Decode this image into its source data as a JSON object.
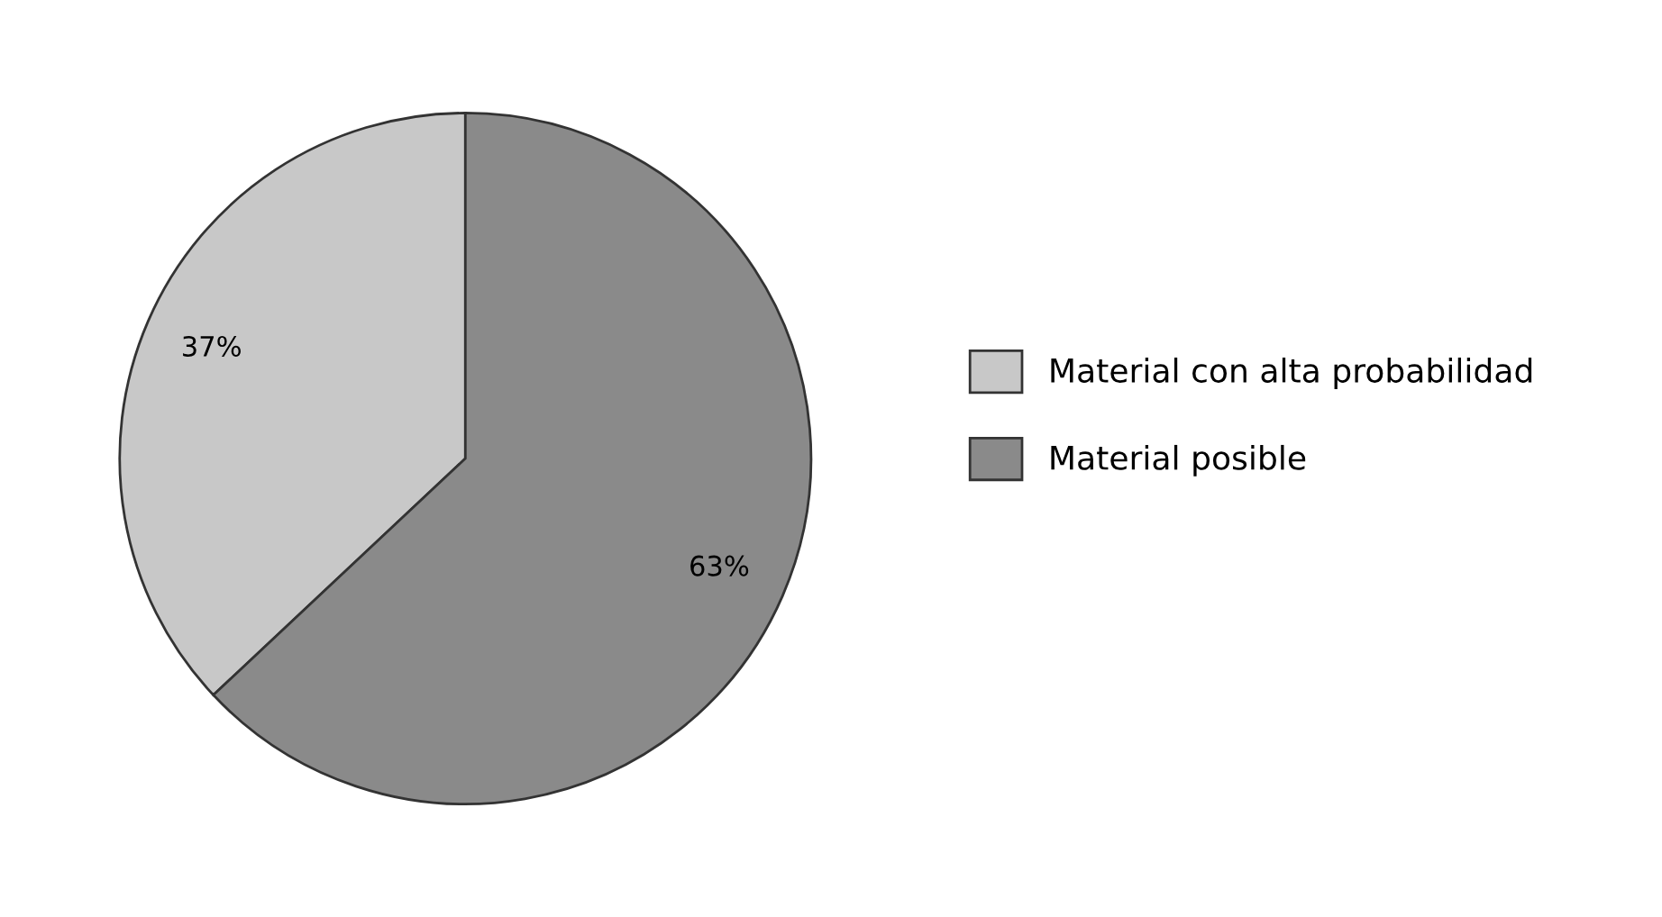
{
  "chart_data": {
    "type": "pie",
    "categories": [
      "Material con alta probabilidad",
      "Material posible"
    ],
    "values": [
      37,
      63
    ],
    "colors": [
      "#c8c8c8",
      "#8a8a8a"
    ],
    "value_labels": [
      "37%",
      "63%"
    ],
    "legend": "right"
  }
}
